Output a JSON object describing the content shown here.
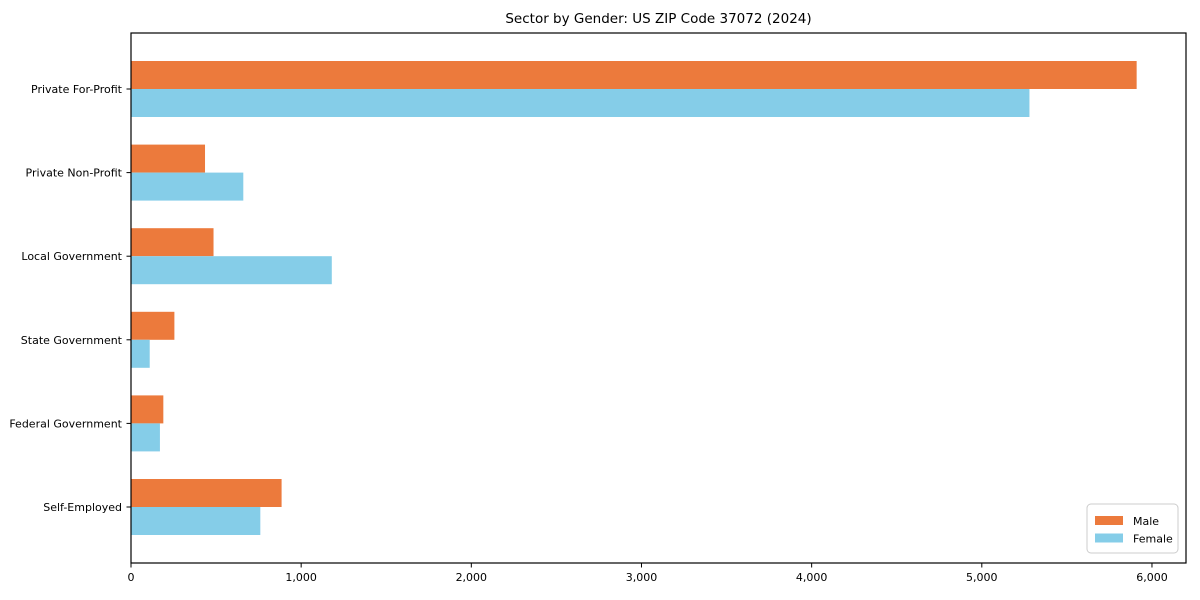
{
  "title": "Sector by Gender: US ZIP Code 37072 (2024)",
  "colors": {
    "male": "#ec7a3c",
    "female": "#85cde8",
    "frame": "#000000",
    "legend_border": "#cccccc",
    "background": "#ffffff"
  },
  "chart_data": {
    "type": "bar",
    "orientation": "horizontal",
    "title": "Sector by Gender: US ZIP Code 37072 (2024)",
    "xlabel": "",
    "ylabel": "",
    "categories": [
      "Private For-Profit",
      "Private Non-Profit",
      "Local Government",
      "State Government",
      "Federal Government",
      "Self-Employed"
    ],
    "series": [
      {
        "name": "Male",
        "color": "#ec7a3c",
        "values": [
          5910,
          435,
          485,
          255,
          190,
          885
        ]
      },
      {
        "name": "Female",
        "color": "#85cde8",
        "values": [
          5280,
          660,
          1180,
          110,
          170,
          760
        ]
      }
    ],
    "xlim": [
      0,
      6200
    ],
    "xticks": [
      0,
      1000,
      2000,
      3000,
      4000,
      5000,
      6000
    ],
    "xtick_labels": [
      "0",
      "1,000",
      "2,000",
      "3,000",
      "4,000",
      "5,000",
      "6,000"
    ],
    "grid": false,
    "legend_position": "lower right"
  },
  "legend": {
    "items": [
      {
        "label": "Male",
        "color": "#ec7a3c"
      },
      {
        "label": "Female",
        "color": "#85cde8"
      }
    ]
  }
}
